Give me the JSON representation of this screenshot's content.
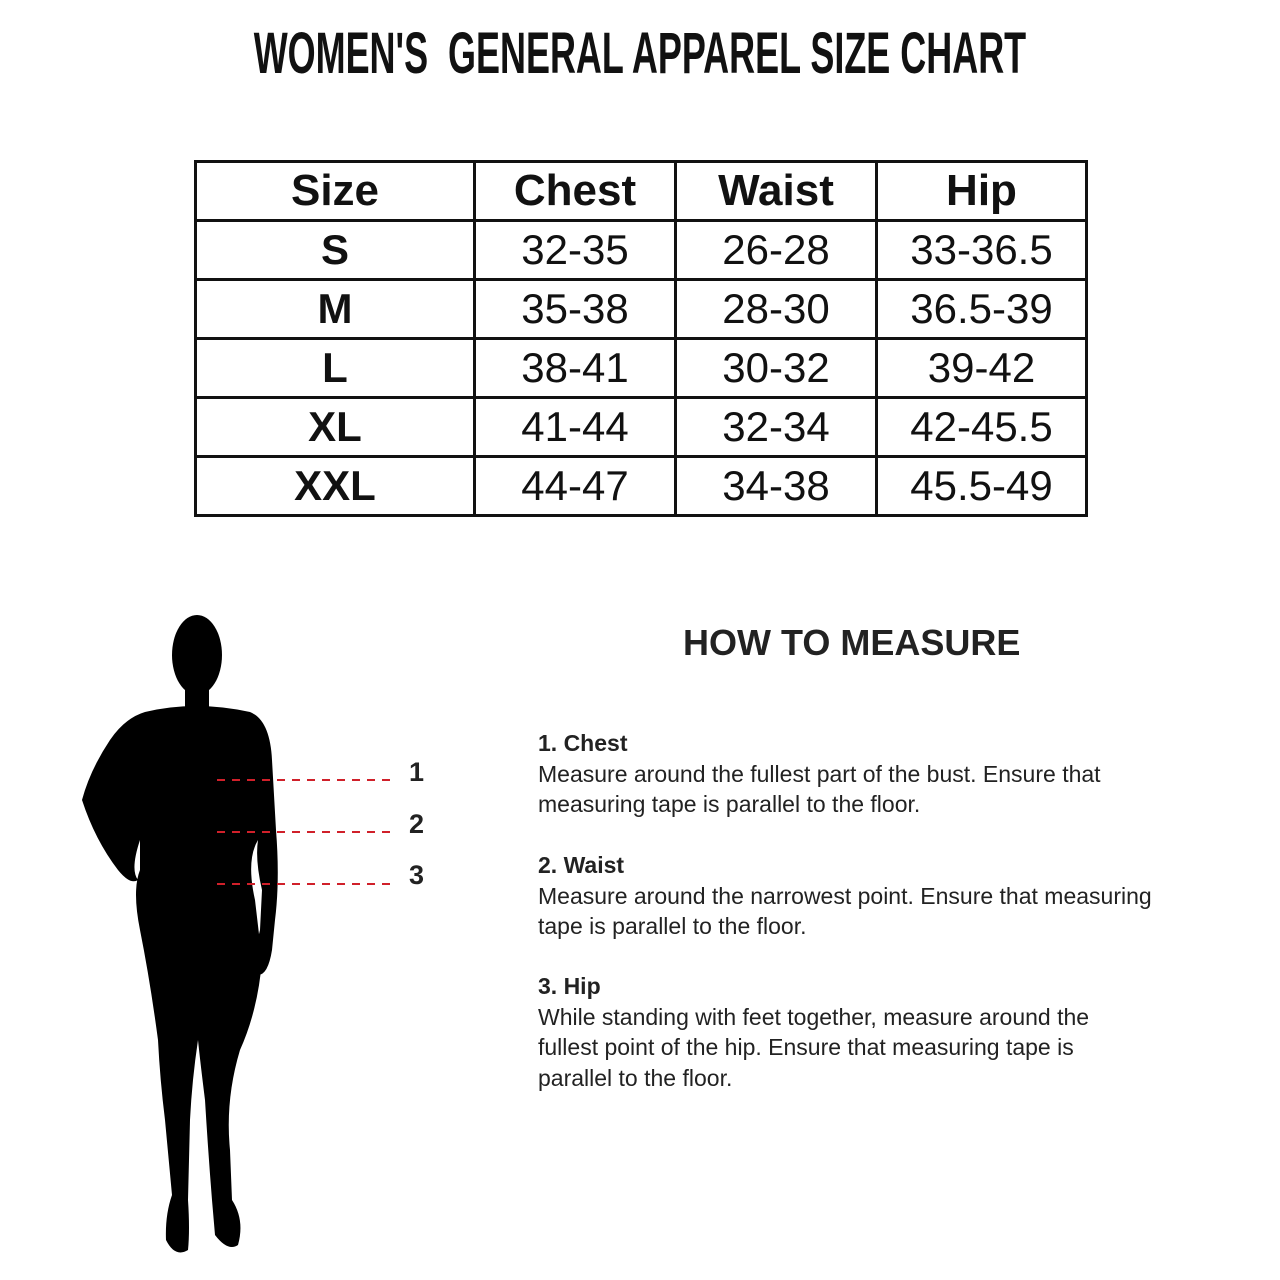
{
  "title": "WOMEN'S  GENERAL APPAREL SIZE CHART",
  "table": {
    "headers": [
      "Size",
      "Chest",
      "Waist",
      "Hip"
    ],
    "rows": [
      [
        "S",
        "32-35",
        "26-28",
        "33-36.5"
      ],
      [
        "M",
        "35-38",
        "28-30",
        "36.5-39"
      ],
      [
        "L",
        "38-41",
        "30-32",
        "39-42"
      ],
      [
        "XL",
        "41-44",
        "32-34",
        "42-45.5"
      ],
      [
        "XXL",
        "44-47",
        "34-38",
        "45.5-49"
      ]
    ]
  },
  "figure": {
    "markers": [
      "1",
      "2",
      "3"
    ],
    "line_color": "#d0202a"
  },
  "how_to_measure": {
    "heading": "HOW TO MEASURE",
    "steps": [
      {
        "title": "1. Chest",
        "lines": [
          "Measure around the fullest part of the bust. Ensure that",
          "measuring tape is parallel to the floor."
        ]
      },
      {
        "title": "2. Waist",
        "lines": [
          "Measure around the narrowest point. Ensure that measuring",
          "tape is parallel to the floor."
        ]
      },
      {
        "title": "3. Hip",
        "lines": [
          "While standing with feet together, measure around the",
          "fullest point of the hip. Ensure that measuring tape is",
          "parallel to the floor."
        ]
      }
    ]
  }
}
